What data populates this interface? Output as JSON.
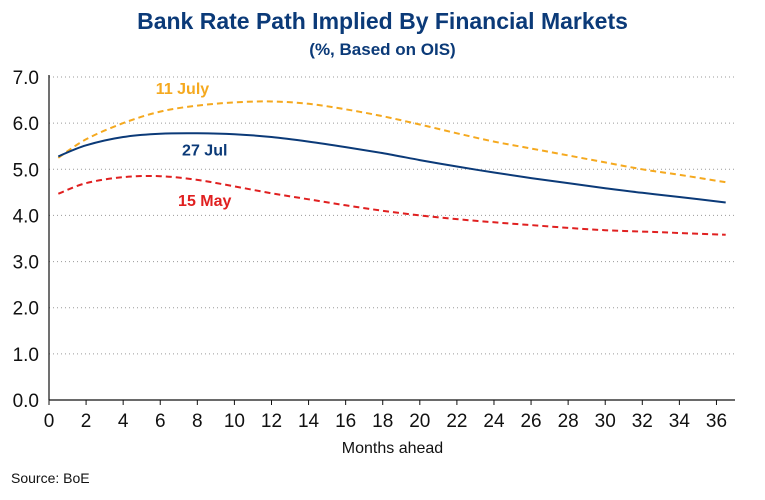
{
  "chart_data": {
    "type": "line",
    "title": "Bank Rate Path Implied By Financial Markets",
    "subtitle": "(%, Based on OIS)",
    "xlabel": "Months ahead",
    "ylabel": "",
    "source": "Source: BoE",
    "xlim": [
      0,
      37
    ],
    "ylim": [
      0,
      7
    ],
    "x_ticks": [
      "0",
      "2",
      "4",
      "6",
      "8",
      "10",
      "12",
      "14",
      "16",
      "18",
      "20",
      "22",
      "24",
      "26",
      "28",
      "30",
      "32",
      "34",
      "36"
    ],
    "y_ticks": [
      "0.0",
      "1.0",
      "2.0",
      "3.0",
      "4.0",
      "5.0",
      "6.0",
      "7.0"
    ],
    "grid": "horizontal dotted",
    "series": [
      {
        "name": "11 July",
        "color": "#f5a91f",
        "style": "dashed",
        "x": [
          0.5,
          2,
          4,
          6,
          8,
          10,
          12,
          14,
          16,
          18,
          20,
          22,
          24,
          26,
          28,
          30,
          32,
          34,
          36.5
        ],
        "y": [
          5.25,
          5.65,
          6.0,
          6.25,
          6.38,
          6.45,
          6.47,
          6.42,
          6.3,
          6.15,
          5.97,
          5.78,
          5.6,
          5.45,
          5.3,
          5.15,
          5.0,
          4.88,
          4.72
        ]
      },
      {
        "name": "27 Jul",
        "color": "#0b3a78",
        "style": "solid",
        "x": [
          0.5,
          2,
          4,
          6,
          8,
          10,
          12,
          14,
          16,
          18,
          20,
          22,
          24,
          26,
          28,
          30,
          32,
          34,
          36.5
        ],
        "y": [
          5.28,
          5.52,
          5.7,
          5.77,
          5.78,
          5.76,
          5.7,
          5.6,
          5.48,
          5.35,
          5.2,
          5.06,
          4.93,
          4.81,
          4.7,
          4.59,
          4.49,
          4.4,
          4.28
        ]
      },
      {
        "name": "15 May",
        "color": "#e02020",
        "style": "dashed",
        "x": [
          0.5,
          2,
          4,
          6,
          8,
          10,
          12,
          14,
          16,
          18,
          20,
          22,
          24,
          26,
          28,
          30,
          32,
          34,
          36.5
        ],
        "y": [
          4.47,
          4.7,
          4.83,
          4.85,
          4.77,
          4.63,
          4.48,
          4.35,
          4.22,
          4.1,
          4.0,
          3.92,
          3.85,
          3.79,
          3.73,
          3.68,
          3.65,
          3.62,
          3.58
        ]
      }
    ]
  }
}
